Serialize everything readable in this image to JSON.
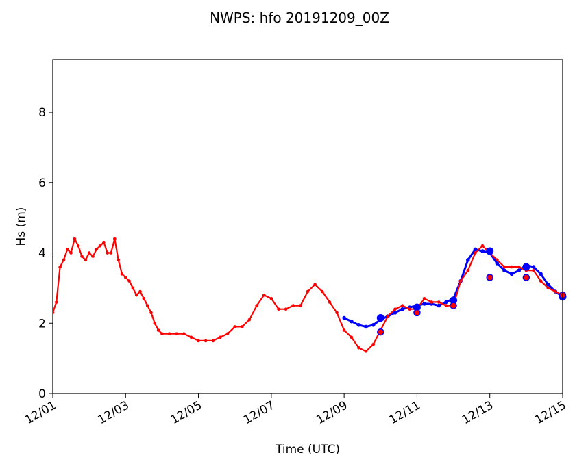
{
  "chart_data": {
    "type": "line",
    "title": "NWPS: hfo 20191209_00Z",
    "xlabel": "Time (UTC)",
    "ylabel": "Hs (m)",
    "xlim": [
      0,
      14
    ],
    "ylim": [
      0,
      9.5
    ],
    "x_ticks": [
      0,
      2,
      4,
      6,
      8,
      10,
      12,
      14
    ],
    "x_tick_labels": [
      "12/01",
      "12/03",
      "12/05",
      "12/07",
      "12/09",
      "12/11",
      "12/13",
      "12/15"
    ],
    "y_ticks": [
      0,
      2,
      4,
      6,
      8
    ],
    "y_tick_labels": [
      "0",
      "2",
      "4",
      "6",
      "8"
    ],
    "grid": false,
    "colors": {
      "observed": "#ff0000",
      "model": "#0000ff",
      "text": "#000000"
    },
    "series": [
      {
        "x": [
          0.0,
          0.1,
          0.2,
          0.3,
          0.4,
          0.5,
          0.6,
          0.7,
          0.8,
          0.9,
          1.0,
          1.1,
          1.2,
          1.3,
          1.4,
          1.5,
          1.6,
          1.7,
          1.8,
          1.9,
          2.0,
          2.1,
          2.2,
          2.3,
          2.4,
          2.5,
          2.6,
          2.7,
          2.8,
          2.9,
          3.0,
          3.2,
          3.4,
          3.6,
          3.8,
          4.0,
          4.2,
          4.4,
          4.6,
          4.8,
          5.0,
          5.2,
          5.4,
          5.6,
          5.8,
          6.0,
          6.2,
          6.4,
          6.6,
          6.8,
          7.0,
          7.2,
          7.4,
          7.6,
          7.8,
          8.0,
          8.2,
          8.4,
          8.6,
          8.8,
          9.0,
          9.2,
          9.4,
          9.6,
          9.8,
          10.0,
          10.2,
          10.4,
          10.6,
          10.8,
          11.0,
          11.2,
          11.4,
          11.6,
          11.8,
          12.0,
          12.2,
          12.4,
          12.6,
          12.8,
          13.0,
          13.2,
          13.4,
          13.6,
          13.8,
          14.0
        ],
        "values": [
          2.3,
          2.6,
          3.6,
          3.8,
          4.1,
          4.0,
          4.4,
          4.2,
          3.9,
          3.8,
          4.0,
          3.9,
          4.1,
          4.2,
          4.3,
          4.0,
          4.0,
          4.4,
          3.8,
          3.4,
          3.3,
          3.2,
          3.0,
          2.8,
          2.9,
          2.7,
          2.5,
          2.3,
          2.0,
          1.8,
          1.7,
          1.7,
          1.7,
          1.7,
          1.6,
          1.5,
          1.5,
          1.5,
          1.6,
          1.7,
          1.9,
          1.9,
          2.1,
          2.5,
          2.8,
          2.7,
          2.4,
          2.4,
          2.5,
          2.5,
          2.9,
          3.1,
          2.9,
          2.6,
          2.3,
          1.8,
          1.6,
          1.3,
          1.2,
          1.4,
          1.8,
          2.2,
          2.4,
          2.5,
          2.4,
          2.4,
          2.7,
          2.6,
          2.6,
          2.5,
          2.5,
          3.2,
          3.5,
          4.0,
          4.2,
          4.0,
          3.8,
          3.6,
          3.6,
          3.6,
          3.5,
          3.5,
          3.2,
          3.0,
          2.9,
          2.8
        ]
      },
      {
        "x": [
          8.0,
          8.2,
          8.4,
          8.6,
          8.8,
          9.0,
          9.2,
          9.4,
          9.6,
          9.8,
          10.0,
          10.2,
          10.4,
          10.6,
          10.8,
          11.0,
          11.2,
          11.4,
          11.6,
          11.8,
          12.0,
          12.2,
          12.4,
          12.6,
          12.8,
          13.0,
          13.2,
          13.4,
          13.6,
          13.8,
          14.0
        ],
        "values": [
          2.15,
          2.05,
          1.95,
          1.9,
          1.95,
          2.1,
          2.2,
          2.3,
          2.4,
          2.45,
          2.5,
          2.55,
          2.55,
          2.5,
          2.6,
          2.7,
          3.2,
          3.8,
          4.1,
          4.05,
          4.0,
          3.7,
          3.5,
          3.4,
          3.5,
          3.65,
          3.6,
          3.4,
          3.1,
          2.9,
          2.75
        ]
      }
    ],
    "markers_model": [
      {
        "x": 9.0,
        "y": 2.15
      },
      {
        "x": 10.0,
        "y": 2.45
      },
      {
        "x": 11.0,
        "y": 2.65
      },
      {
        "x": 12.0,
        "y": 4.05
      },
      {
        "x": 13.0,
        "y": 3.6
      },
      {
        "x": 14.0,
        "y": 2.75
      }
    ],
    "markers_obs": [
      {
        "x": 9.0,
        "y": 1.75
      },
      {
        "x": 10.0,
        "y": 2.3
      },
      {
        "x": 11.0,
        "y": 2.5
      },
      {
        "x": 12.0,
        "y": 3.3
      },
      {
        "x": 13.0,
        "y": 3.3
      },
      {
        "x": 14.0,
        "y": 2.8
      }
    ]
  }
}
